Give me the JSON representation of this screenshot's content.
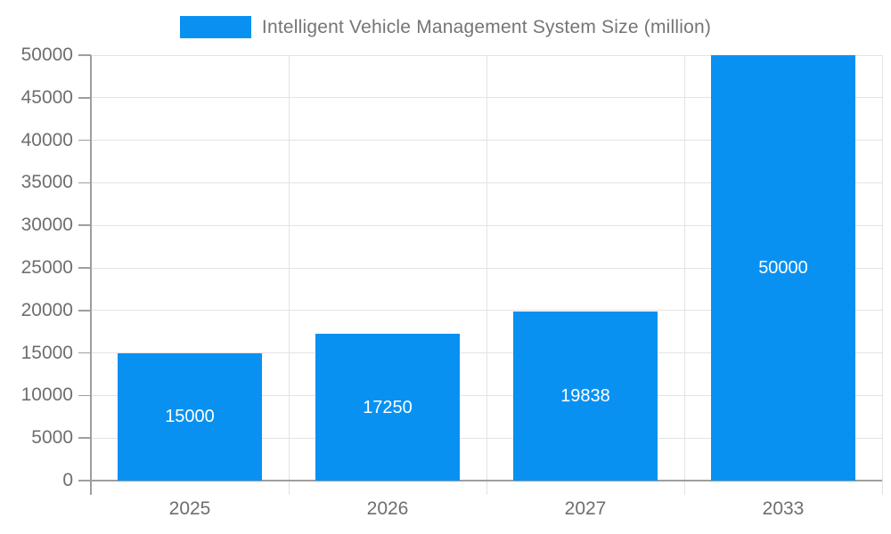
{
  "chart_data": {
    "type": "bar",
    "title": "Intelligent Vehicle Management System Size (million)",
    "categories": [
      "2025",
      "2026",
      "2027",
      "2033"
    ],
    "values": [
      15000,
      17250,
      19838,
      50000
    ],
    "bar_labels": [
      "15000",
      "17250",
      "19838",
      "50000"
    ],
    "xlabel": "",
    "ylabel": "",
    "ylim": [
      0,
      50000
    ],
    "ytick_step": 5000,
    "ytick_labels": [
      "0",
      "5000",
      "10000",
      "15000",
      "20000",
      "25000",
      "30000",
      "35000",
      "40000",
      "45000",
      "50000"
    ],
    "grid": true,
    "legend": {
      "position": "top",
      "entries": [
        "Intelligent Vehicle Management System Size (million)"
      ]
    },
    "colors": {
      "bar": "#0991f2",
      "bar_label": "#ffffff",
      "grid_line": "#e3e3e3",
      "axis_line": "#9e9e9e",
      "tick_label": "#6e6e6e",
      "title_text": "#757575",
      "background": "#ffffff"
    }
  }
}
